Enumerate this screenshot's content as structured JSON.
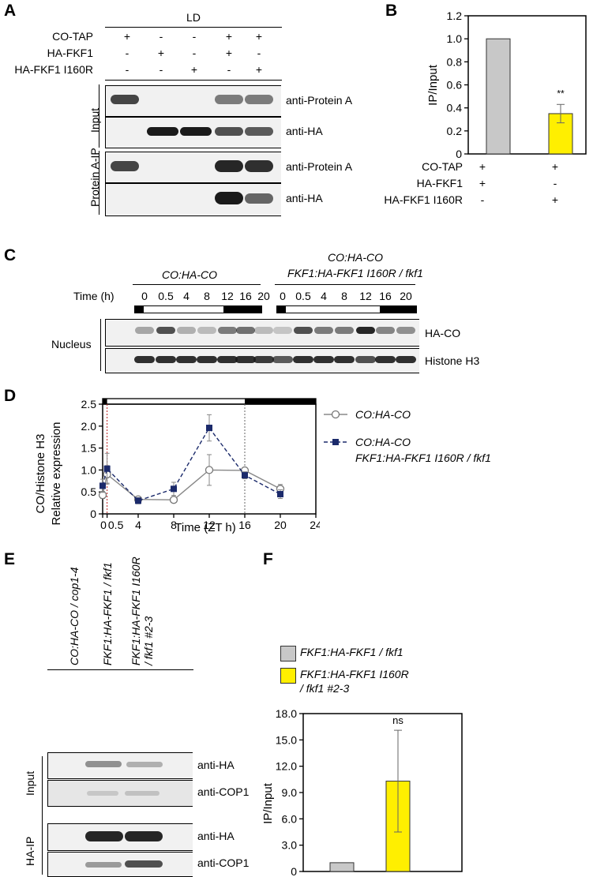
{
  "panels": {
    "A": {
      "label": "A",
      "condition": "LD",
      "row_labels": [
        "CO-TAP",
        "HA-FKF1",
        "HA-FKF1 I160R"
      ],
      "signs": [
        [
          "+",
          "-",
          "-",
          "+",
          "+"
        ],
        [
          "-",
          "+",
          "-",
          "+",
          "-"
        ],
        [
          "-",
          "-",
          "+",
          "-",
          "+"
        ]
      ],
      "group_input": "Input",
      "group_ip": "Protein A-IP",
      "blot_labels": [
        "anti-Protein A",
        "anti-HA",
        "anti-Protein A",
        "anti-HA"
      ]
    },
    "B": {
      "label": "B",
      "row_labels": [
        "CO-TAP",
        "HA-FKF1",
        "HA-FKF1 I160R"
      ],
      "signs": [
        [
          "+",
          "+"
        ],
        [
          "+",
          "-"
        ],
        [
          "-",
          "+"
        ]
      ],
      "significance": "**",
      "bar_colors": [
        "#c8c8c8",
        "#ffef00"
      ]
    },
    "C": {
      "label": "C",
      "group1": "CO:HA-CO",
      "group2_line1": "CO:HA-CO",
      "group2_line2": "FKF1:HA-FKF1 I160R / fkf1",
      "time_label": "Time (h)",
      "times": [
        "0",
        "0.5",
        "4",
        "8",
        "12",
        "16",
        "20"
      ],
      "side_label": "Nucleus",
      "blot_labels": [
        "HA-CO",
        "Histone H3"
      ]
    },
    "D": {
      "label": "D",
      "legend": [
        "CO:HA-CO",
        "CO:HA-CO",
        "FKF1:HA-FKF1 I160R / fkf1"
      ]
    },
    "E": {
      "label": "E",
      "lanes": [
        "CO:HA-CO / cop1-4",
        "FKF1:HA-FKF1 / fkf1",
        "FKF1:HA-FKF1 I160R",
        "/ fkf1 #2-3"
      ],
      "group_input": "Input",
      "group_ip": "HA-IP",
      "blot_labels": [
        "anti-HA",
        "anti-COP1",
        "anti-HA",
        "anti-COP1"
      ]
    },
    "F": {
      "label": "F",
      "legend": [
        "FKF1:HA-FKF1 / fkf1",
        "FKF1:HA-FKF1 I160R",
        "/ fkf1 #2-3"
      ],
      "significance": "ns",
      "bar_colors": [
        "#c8c8c8",
        "#ffef00"
      ]
    }
  },
  "chart_data": [
    {
      "panel": "B",
      "type": "bar",
      "categories": [
        "HA-FKF1",
        "HA-FKF1 I160R"
      ],
      "values": [
        1.0,
        0.35
      ],
      "errors": [
        0,
        0.08
      ],
      "ylabel": "IP/Input",
      "ylim": [
        0,
        1.2
      ],
      "yticks": [
        "0",
        "0.2",
        "0.4",
        "0.6",
        "0.8",
        "1.0",
        "1.2"
      ]
    },
    {
      "panel": "D",
      "type": "line",
      "xlabel": "Time (ZT h)",
      "ylabel": "CO/Histone H3 Relative expression",
      "xlim": [
        0,
        24
      ],
      "ylim": [
        0,
        2.5
      ],
      "xticks": [
        "0",
        "0.5",
        "4",
        "8",
        "12",
        "16",
        "20",
        "24"
      ],
      "yticks": [
        "0",
        "0.5",
        "1.0",
        "1.5",
        "2.0",
        "2.5"
      ],
      "series": [
        {
          "name": "CO:HA-CO",
          "x": [
            0,
            0.5,
            4,
            8,
            12,
            16,
            20
          ],
          "y": [
            0.43,
            0.9,
            0.33,
            0.32,
            1.0,
            0.99,
            0.57
          ],
          "err": [
            0.08,
            0.2,
            0.06,
            0.06,
            0.35,
            0.06,
            0.1
          ]
        },
        {
          "name": "CO:HA-CO FKF1:HA-FKF1 I160R / fkf1",
          "x": [
            0,
            0.5,
            4,
            8,
            12,
            16,
            20
          ],
          "y": [
            0.64,
            1.03,
            0.3,
            0.57,
            1.96,
            0.88,
            0.45
          ],
          "err": [
            0.15,
            0.35,
            0.07,
            0.15,
            0.3,
            0.08,
            0.1
          ]
        }
      ]
    },
    {
      "panel": "F",
      "type": "bar",
      "categories": [
        "FKF1:HA-FKF1 / fkf1",
        "FKF1:HA-FKF1 I160R / fkf1 #2-3"
      ],
      "values": [
        1.0,
        10.3
      ],
      "errors": [
        0,
        5.8
      ],
      "ylabel": "IP/Input",
      "ylim": [
        0,
        18.0
      ],
      "yticks": [
        "0",
        "3.0",
        "6.0",
        "9.0",
        "12.0",
        "15.0",
        "18.0"
      ]
    }
  ]
}
